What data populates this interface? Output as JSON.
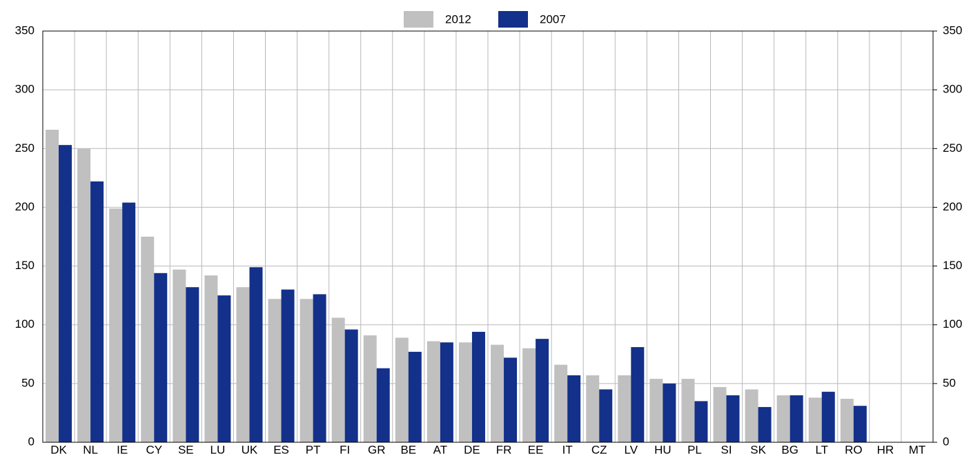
{
  "chart_data": {
    "type": "bar",
    "categories": [
      "DK",
      "NL",
      "IE",
      "CY",
      "SE",
      "LU",
      "UK",
      "ES",
      "PT",
      "FI",
      "GR",
      "BE",
      "AT",
      "DE",
      "FR",
      "EE",
      "IT",
      "CZ",
      "LV",
      "HU",
      "PL",
      "SI",
      "SK",
      "BG",
      "LT",
      "RO",
      "HR",
      "MT"
    ],
    "series": [
      {
        "name": "2012",
        "color": "#c0c0c0",
        "values": [
          266,
          250,
          199,
          175,
          147,
          142,
          132,
          122,
          122,
          106,
          91,
          89,
          86,
          85,
          83,
          80,
          66,
          57,
          57,
          54,
          54,
          47,
          45,
          40,
          38,
          37,
          null,
          null
        ]
      },
      {
        "name": "2007",
        "color": "#13308a",
        "values": [
          253,
          222,
          204,
          144,
          132,
          125,
          149,
          130,
          126,
          96,
          63,
          77,
          85,
          94,
          72,
          88,
          57,
          45,
          81,
          50,
          35,
          40,
          30,
          40,
          43,
          31,
          null,
          null
        ]
      }
    ],
    "ylim": [
      0,
      350
    ],
    "yticks": [
      0,
      50,
      100,
      150,
      200,
      250,
      300,
      350
    ],
    "y2lim": [
      0,
      350
    ],
    "y2ticks": [
      0,
      50,
      100,
      150,
      200,
      250,
      300,
      350
    ],
    "grid": true,
    "legend": "top"
  }
}
